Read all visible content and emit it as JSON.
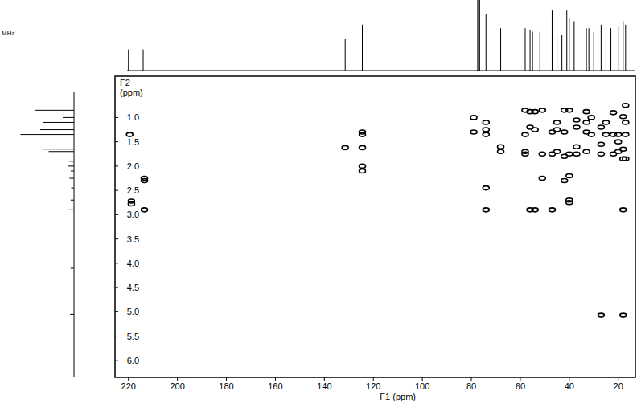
{
  "chart_data": {
    "type": "scatter",
    "title": "MHz",
    "x_label": "F1 (ppm)",
    "y_label": "F2 (ppm)",
    "xlim": [
      225.5,
      13
    ],
    "ylim": [
      0.15,
      6.35
    ],
    "xticks": [
      220,
      200,
      180,
      160,
      140,
      120,
      100,
      80,
      60,
      40,
      20
    ],
    "yticks": [
      {
        "value": 1,
        "label": "1.0"
      },
      {
        "value": 1.5,
        "label": "1.5"
      },
      {
        "value": 2,
        "label": "2.0"
      },
      {
        "value": 2.5,
        "label": "2.5"
      },
      {
        "value": 3,
        "label": "3.0"
      },
      {
        "value": 3.5,
        "label": "3.5"
      },
      {
        "value": 4,
        "label": "4.0"
      },
      {
        "value": 4.5,
        "label": "4.5"
      },
      {
        "value": 5,
        "label": "5.0"
      },
      {
        "value": 5.5,
        "label": "5.5"
      },
      {
        "value": 6,
        "label": "6.0"
      }
    ],
    "color": "#000000",
    "marker": "ellipse",
    "series": [
      {
        "x": [
          219.5,
          218.8,
          218.8,
          213.5,
          213.5,
          213.5,
          131.5,
          124.5,
          124.5,
          124.5,
          124.5,
          124.5,
          79,
          79,
          74,
          74,
          74,
          74,
          74,
          68,
          68,
          58,
          58,
          58,
          58,
          56,
          56,
          56,
          54,
          54,
          54,
          51,
          51,
          51,
          47,
          47,
          47,
          45,
          45,
          45,
          42,
          42,
          42,
          42,
          40,
          40,
          40,
          40,
          40,
          37,
          37,
          37,
          37,
          33,
          33,
          33,
          33,
          31,
          31,
          27,
          27,
          27,
          27,
          25,
          25,
          22,
          22,
          22,
          20,
          20,
          20,
          18,
          18,
          18,
          18,
          18,
          17,
          17,
          17,
          17
        ],
        "values": [
          1.35,
          2.72,
          2.78,
          2.25,
          2.3,
          2.9,
          1.62,
          1.62,
          1.3,
          1.35,
          2.0,
          2.1,
          1.0,
          1.3,
          1.1,
          1.25,
          1.35,
          2.45,
          2.9,
          1.6,
          1.7,
          0.85,
          1.35,
          1.7,
          1.75,
          0.88,
          2.9,
          1.2,
          0.88,
          1.25,
          2.9,
          0.85,
          2.25,
          1.75,
          1.3,
          1.75,
          2.9,
          1.1,
          1.25,
          1.7,
          0.85,
          1.3,
          1.8,
          2.3,
          0.85,
          1.75,
          2.2,
          2.7,
          2.75,
          1.05,
          1.2,
          1.6,
          1.75,
          0.88,
          1.1,
          1.3,
          1.7,
          1.0,
          1.35,
          1.2,
          1.55,
          1.75,
          5.07,
          1.1,
          1.35,
          1.35,
          1.75,
          0.9,
          1.35,
          1.5,
          1.7,
          0.98,
          1.65,
          1.85,
          2.9,
          5.07,
          0.75,
          1.1,
          1.35,
          1.85
        ]
      }
    ],
    "f1_projection": {
      "x": [
        220,
        214,
        131.5,
        124.5,
        77.4,
        77,
        76.6,
        74,
        68,
        58,
        56,
        55,
        52,
        47,
        45,
        43,
        41,
        40,
        38,
        33,
        32,
        30,
        27,
        25,
        23,
        20,
        18,
        17
      ],
      "values": [
        30,
        30,
        45,
        65,
        100,
        100,
        100,
        80,
        60,
        60,
        58,
        55,
        55,
        85,
        50,
        50,
        85,
        75,
        70,
        60,
        60,
        55,
        65,
        52,
        60,
        62,
        70,
        65
      ]
    },
    "f2_projection": {
      "y": [
        0.85,
        1.0,
        1.1,
        1.25,
        1.35,
        1.65,
        1.7,
        1.9,
        2.0,
        2.1,
        2.25,
        2.45,
        2.7,
        2.9,
        4.1,
        5.05
      ],
      "values": [
        70,
        20,
        55,
        60,
        95,
        55,
        45,
        8,
        10,
        6,
        8,
        5,
        6,
        12,
        6,
        7
      ]
    }
  }
}
